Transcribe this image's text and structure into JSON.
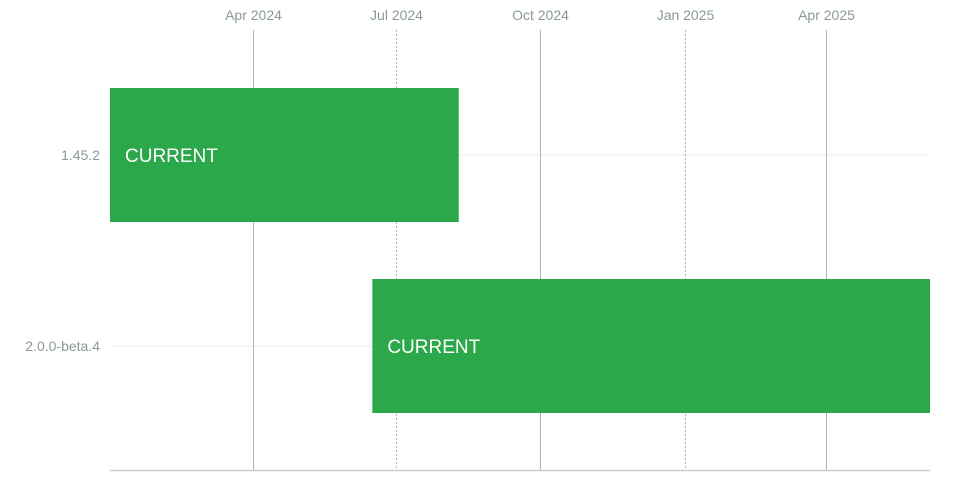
{
  "chart_data": {
    "type": "timeline",
    "x_axis": {
      "type": "date",
      "range": [
        "2024-01-01",
        "2025-06-06"
      ],
      "ticks": [
        {
          "date": "2024-04-01",
          "label": "Apr 2024",
          "style": "solid"
        },
        {
          "date": "2024-07-01",
          "label": "Jul 2024",
          "style": "dotted"
        },
        {
          "date": "2024-10-01",
          "label": "Oct 2024",
          "style": "solid"
        },
        {
          "date": "2025-01-01",
          "label": "Jan 2025",
          "style": "dotted"
        },
        {
          "date": "2025-04-01",
          "label": "Apr 2025",
          "style": "solid"
        }
      ],
      "position": "top"
    },
    "categories": [
      "1.45.2",
      "2.0.0-beta.4"
    ],
    "bars": [
      {
        "category": "1.45.2",
        "start": "2024-01-01",
        "end": "2024-08-10",
        "label": "CURRENT",
        "color": "#2ba84a"
      },
      {
        "category": "2.0.0-beta.4",
        "start": "2024-06-16",
        "end": "2025-06-06",
        "label": "CURRENT",
        "color": "#2ba84a"
      }
    ],
    "colors": {
      "gridline": "#a9b7b2",
      "row_line": "#e8ecea",
      "axis_line": "#c8d0cc",
      "bar": "#2ba84a"
    }
  }
}
